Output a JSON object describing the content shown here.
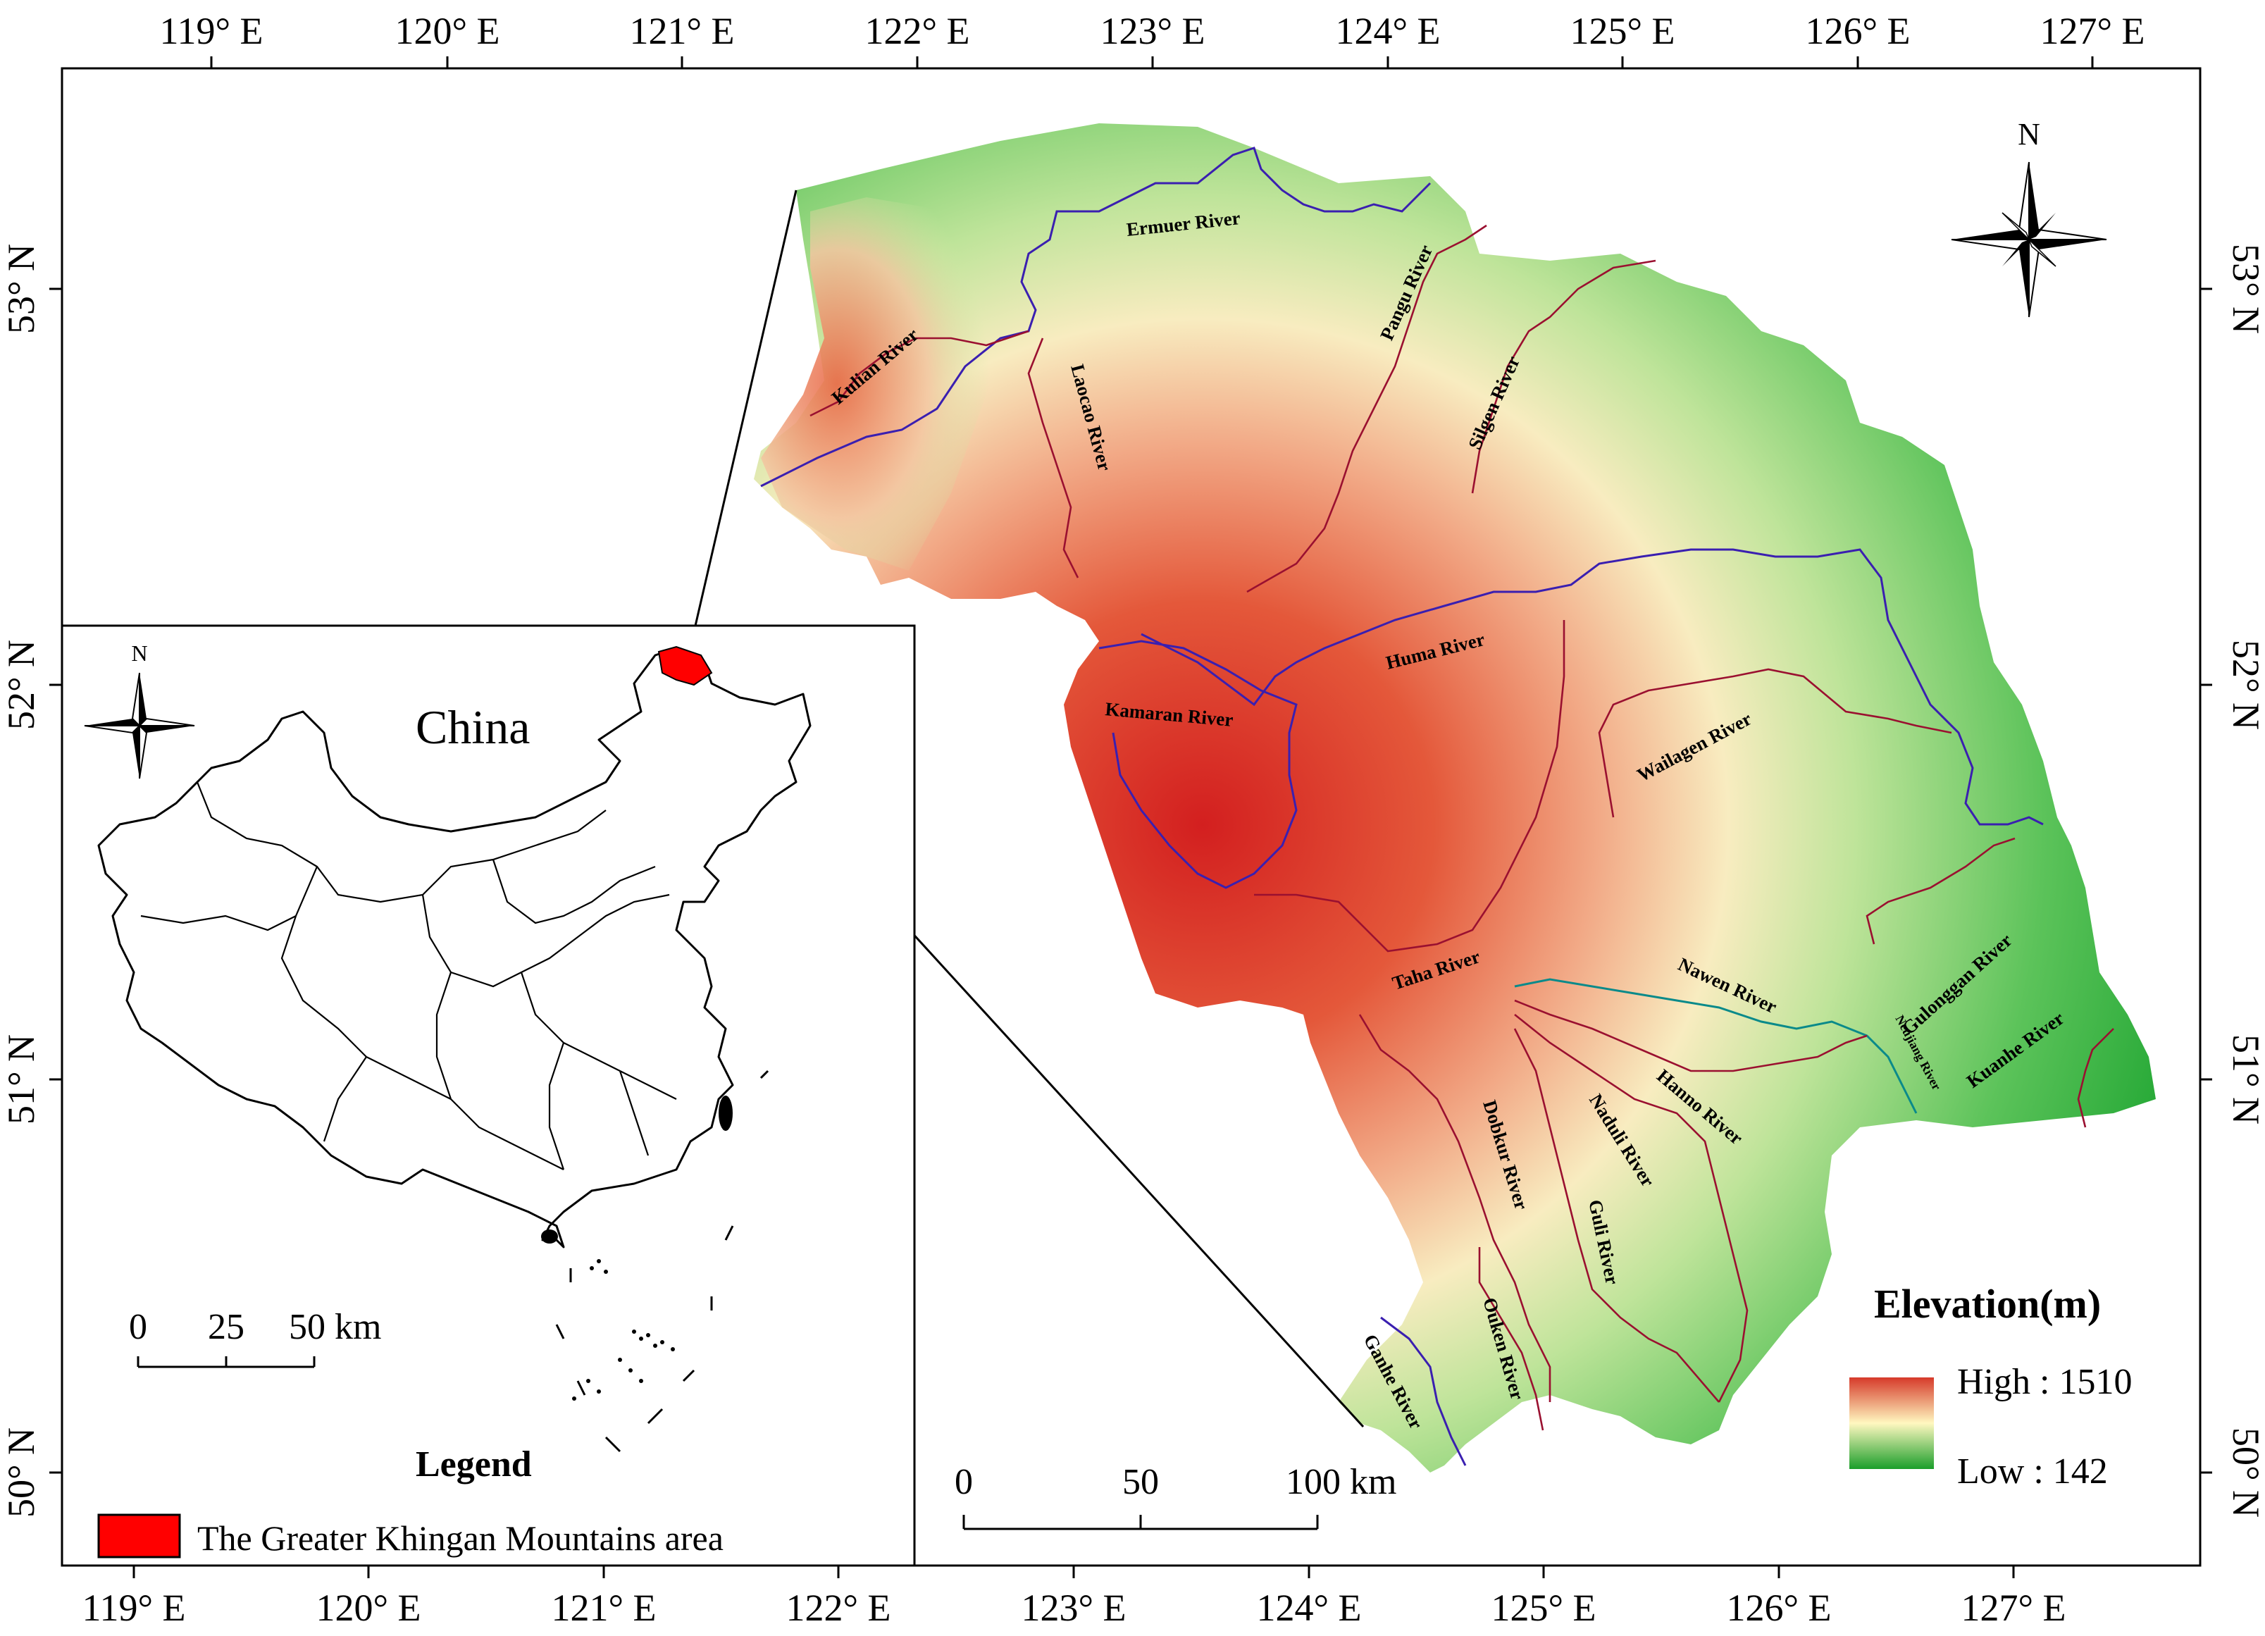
{
  "graticule": {
    "top_lon": [
      "119° E",
      "120° E",
      "121° E",
      "122° E",
      "123° E",
      "124° E",
      "125° E",
      "126° E",
      "127° E"
    ],
    "bottom_lon": [
      "119° E",
      "120° E",
      "121° E",
      "122° E",
      "123° E",
      "124° E",
      "125° E",
      "126° E",
      "127° E"
    ],
    "left_lat": [
      "53° N",
      "52° N",
      "51° N",
      "50° N"
    ],
    "right_lat": [
      "53° N",
      "52° N",
      "51° N",
      "50° N"
    ]
  },
  "north_arrow": {
    "label": "N",
    "icon": "north-arrow-icon"
  },
  "inset": {
    "country_label": "China",
    "north_label": "N",
    "scale": {
      "ticks": [
        "0",
        "25",
        "50 km"
      ]
    },
    "legend": {
      "title": "Legend",
      "items": [
        {
          "label": "The Greater Khingan Mountains area",
          "color": "#ff0000"
        }
      ]
    }
  },
  "main_scale": {
    "ticks": [
      "0",
      "50",
      "100 km"
    ]
  },
  "elevation_legend": {
    "title": "Elevation(m)",
    "high": "High : 1510",
    "low": "Low : 142",
    "colors": {
      "high": "#d63a2a",
      "mid": "#fff8c0",
      "low": "#1a9e2a"
    }
  },
  "rivers": [
    {
      "name": "Ermuer River"
    },
    {
      "name": "Kulian River"
    },
    {
      "name": "Laocao River"
    },
    {
      "name": "Pangu River"
    },
    {
      "name": "Silgen River"
    },
    {
      "name": "Huma River"
    },
    {
      "name": "Kamaran River"
    },
    {
      "name": "Wailagen River"
    },
    {
      "name": "Gulonggan River"
    },
    {
      "name": "Taha River"
    },
    {
      "name": "Nawen River"
    },
    {
      "name": "Neujiang River"
    },
    {
      "name": "Kuanhe River"
    },
    {
      "name": "Hanno River"
    },
    {
      "name": "Naduli River"
    },
    {
      "name": "Dobkur River"
    },
    {
      "name": "Guli River"
    },
    {
      "name": "Ouken River"
    },
    {
      "name": "Ganhe River"
    }
  ]
}
